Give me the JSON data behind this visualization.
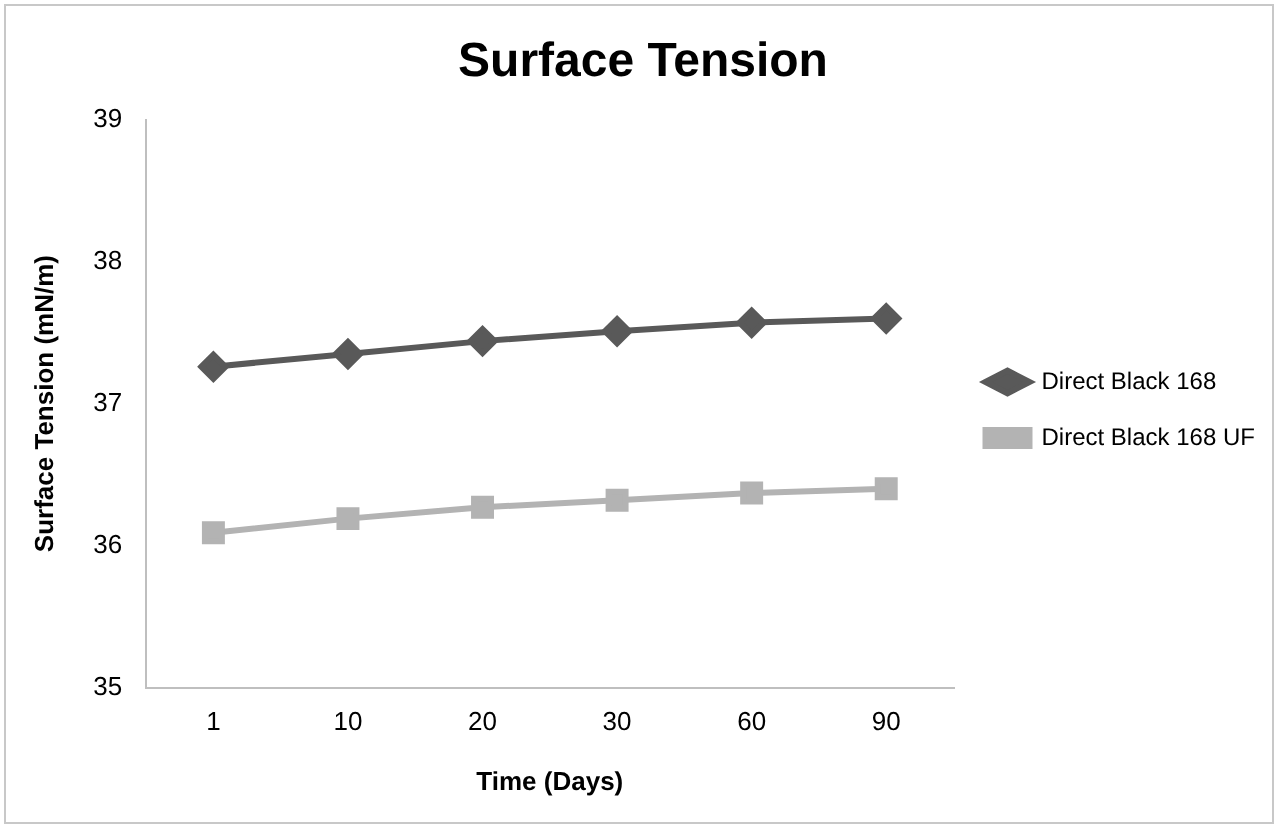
{
  "chart_data": {
    "type": "line",
    "title": "Surface Tension",
    "xlabel": "Time (Days)",
    "ylabel": "Surface Tension (mN/m)",
    "categories": [
      "1",
      "10",
      "20",
      "30",
      "60",
      "90"
    ],
    "ylim": [
      35,
      39
    ],
    "yticks": [
      35,
      36,
      37,
      38,
      39
    ],
    "grid": false,
    "legend": "right",
    "line_style": "solid",
    "series": [
      {
        "name": "Direct Black 168",
        "color": "#595959",
        "marker": "diamond",
        "values": [
          37.26,
          37.35,
          37.44,
          37.51,
          37.57,
          37.6
        ]
      },
      {
        "name": "Direct Black 168 UF",
        "color": "#b3b3b3",
        "marker": "square",
        "values": [
          36.09,
          36.19,
          36.27,
          36.32,
          36.37,
          36.4
        ]
      }
    ]
  }
}
